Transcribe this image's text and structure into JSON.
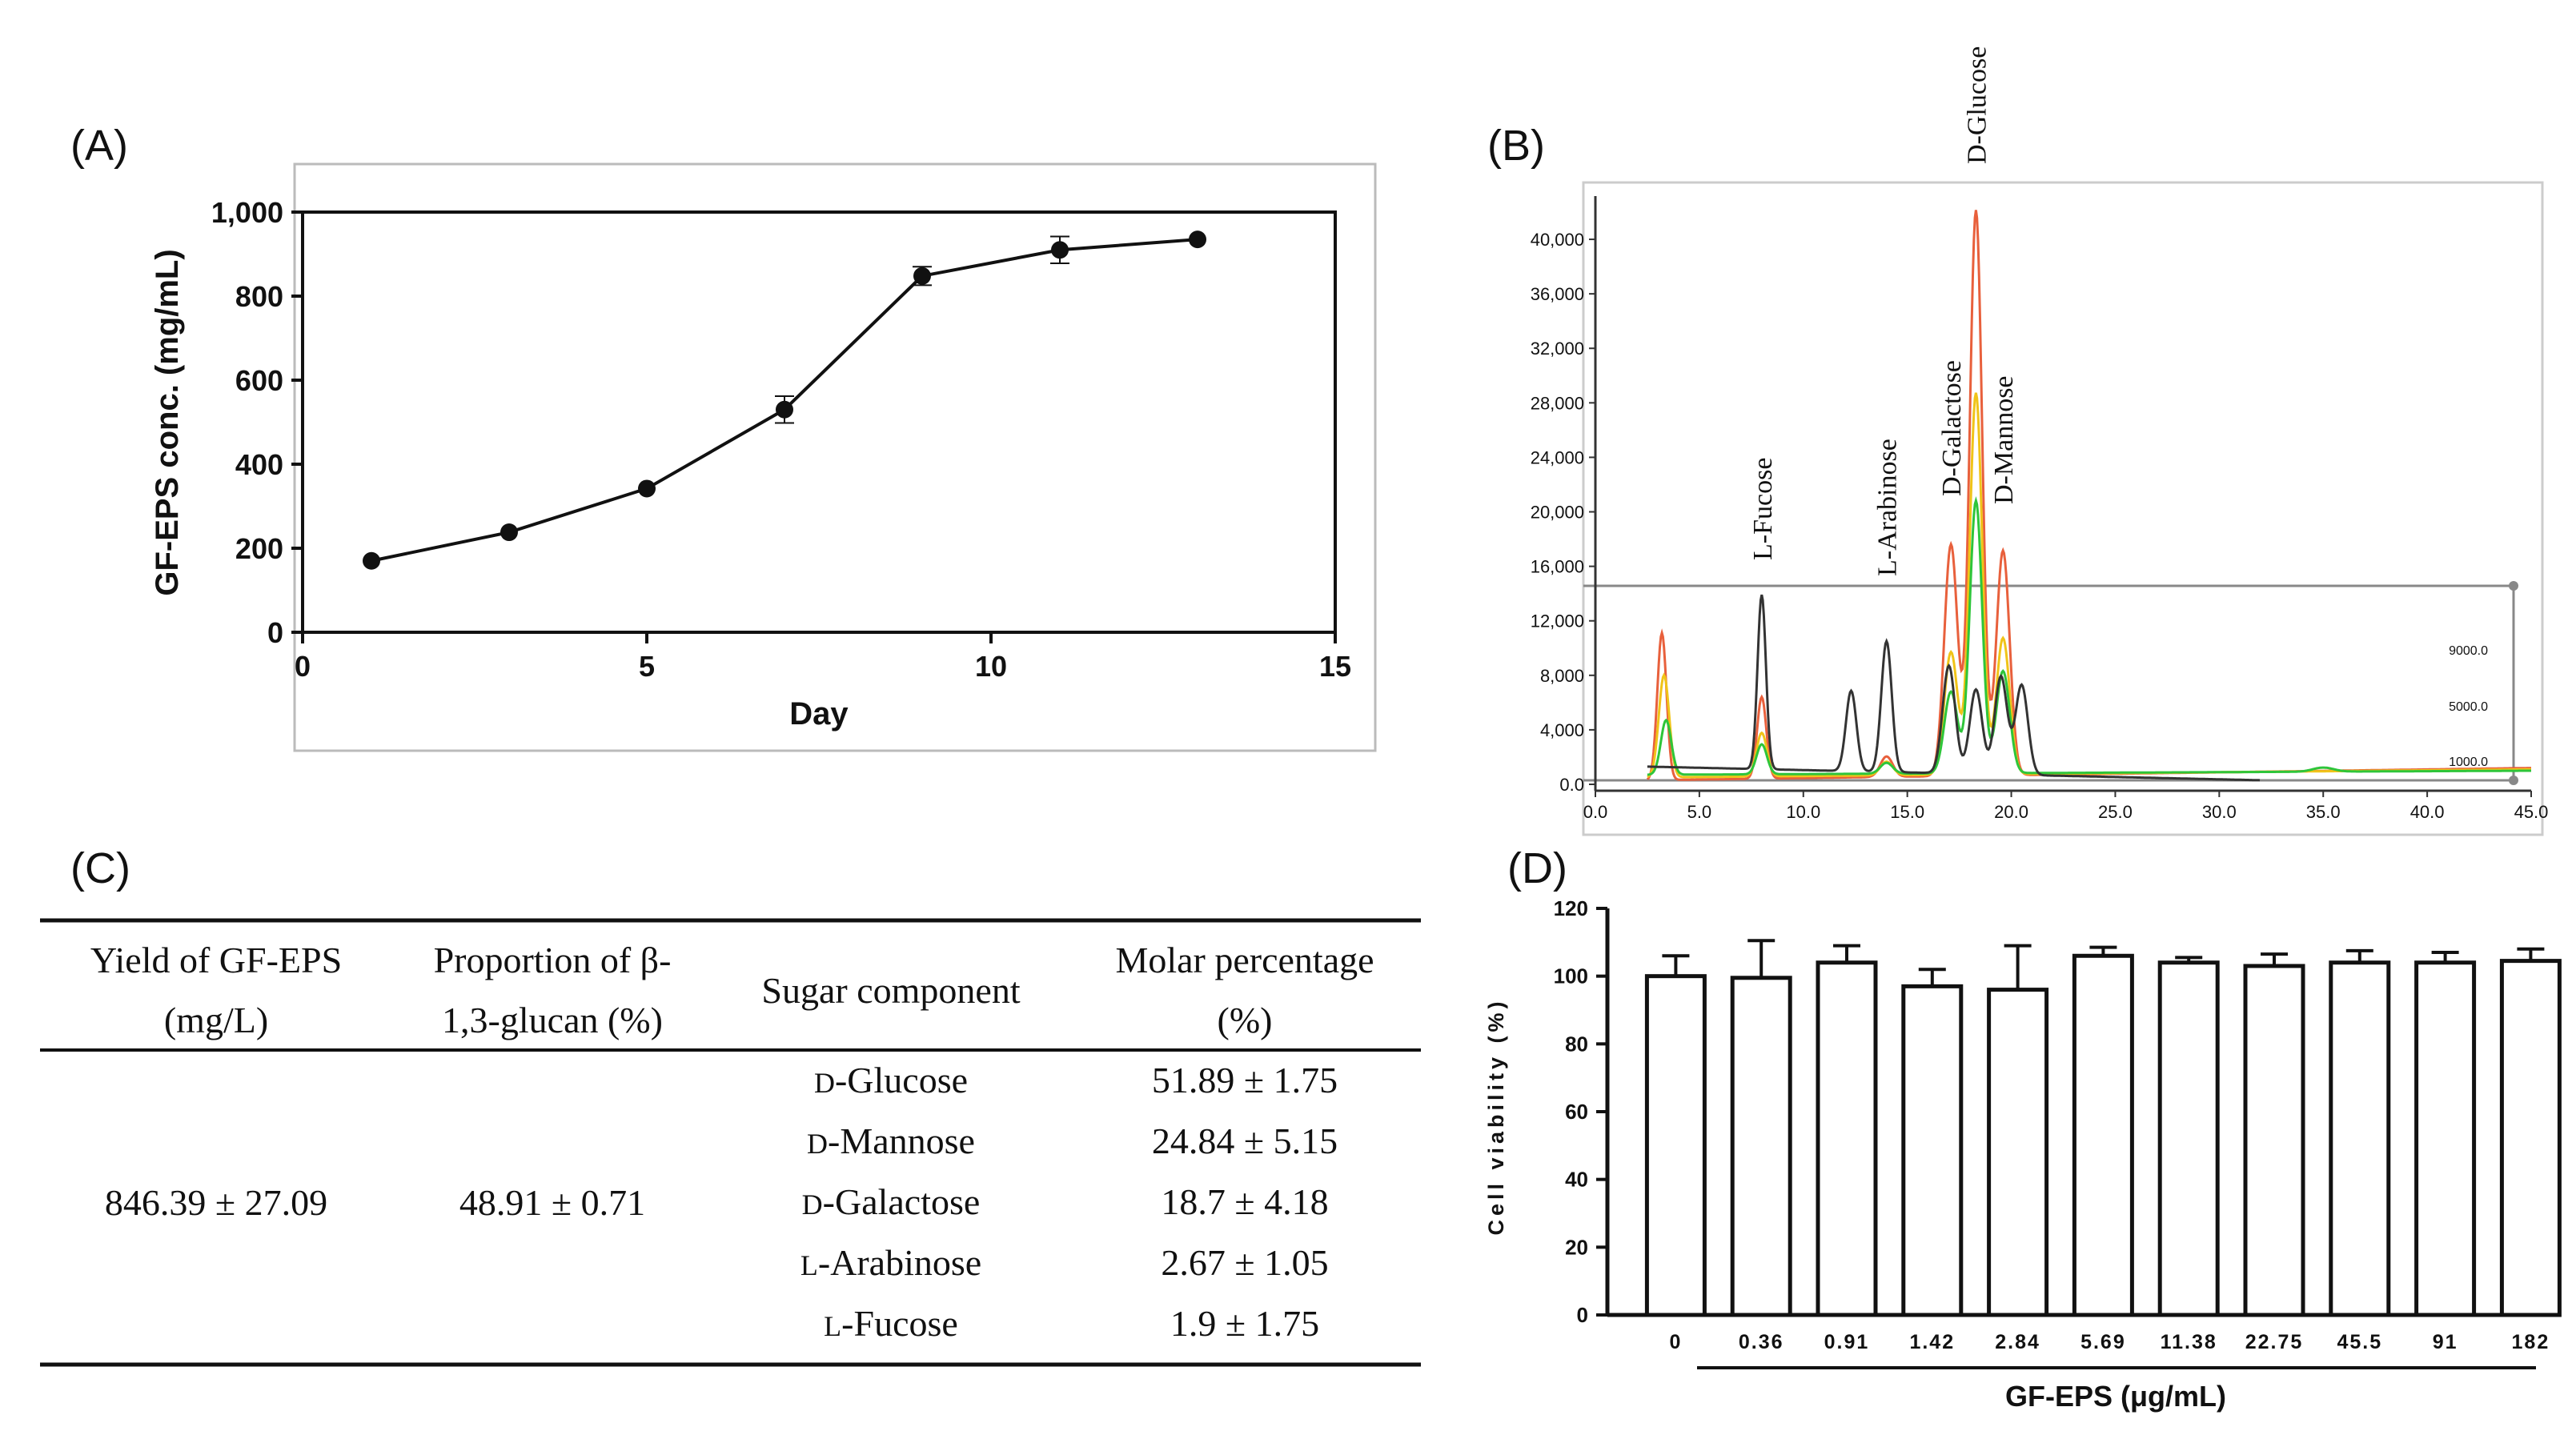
{
  "panels": {
    "a": "(A)",
    "b": "(B)",
    "c": "(C)",
    "d": "(D)"
  },
  "chart_data": [
    {
      "type": "line",
      "xlabel": "Day",
      "ylabel": "GF-EPS conc. (mg/mL)",
      "xlim": [
        0,
        15
      ],
      "ylim": [
        0,
        1000
      ],
      "xticks": [
        "0",
        "5",
        "10",
        "15"
      ],
      "yticks": [
        "0",
        "200",
        "400",
        "600",
        "800",
        "1,000"
      ],
      "x": [
        1,
        3,
        5,
        7,
        9,
        11,
        13
      ],
      "y": [
        170,
        238,
        342,
        530,
        848,
        910,
        935
      ],
      "err": [
        0,
        0,
        0,
        32,
        22,
        32,
        0
      ]
    },
    {
      "type": "line",
      "xlim": [
        0,
        45
      ],
      "ylim": [
        0,
        42000
      ],
      "xticks": [
        "0.0",
        "5.0",
        "10.0",
        "15.0",
        "20.0",
        "25.0",
        "30.0",
        "35.0",
        "40.0",
        "45.0"
      ],
      "yticks": [
        "0.0",
        "4,000",
        "8,000",
        "12,000",
        "16,000",
        "20,000",
        "24,000",
        "28,000",
        "32,000",
        "36,000",
        "40,000"
      ],
      "right_labels": [
        "9000.0",
        "5000.0",
        "1000.0"
      ],
      "peak_labels": [
        "L-Fucose",
        "L-Arabinose",
        "D-Galactose",
        "D-Glucose",
        "D-Mannose"
      ],
      "peak_x": [
        8.0,
        14.0,
        17.1,
        18.3,
        19.6
      ],
      "series": [
        {
          "name": "red",
          "color": "#e8603c",
          "peaks": [
            [
              3.2,
              10800,
              0.22
            ],
            [
              8.0,
              6000,
              0.22
            ],
            [
              14.0,
              1500,
              0.3
            ],
            [
              17.1,
              17000,
              0.32
            ],
            [
              18.3,
              41500,
              0.3
            ],
            [
              19.6,
              16500,
              0.32
            ]
          ],
          "base_start": 300,
          "base_end": 1200
        },
        {
          "name": "yellow",
          "color": "#f0c419",
          "peaks": [
            [
              3.3,
              7500,
              0.25
            ],
            [
              8.0,
              3200,
              0.25
            ],
            [
              14.0,
              1000,
              0.3
            ],
            [
              17.1,
              9000,
              0.32
            ],
            [
              18.3,
              28000,
              0.3
            ],
            [
              19.6,
              10000,
              0.32
            ]
          ],
          "base_start": 500,
          "base_end": 1100
        },
        {
          "name": "green",
          "color": "#2ec53a",
          "peaks": [
            [
              3.4,
              4000,
              0.25
            ],
            [
              8.0,
              2200,
              0.25
            ],
            [
              14.0,
              800,
              0.3
            ],
            [
              17.1,
              6000,
              0.32
            ],
            [
              18.3,
              20000,
              0.3
            ],
            [
              19.6,
              7500,
              0.32
            ],
            [
              35.0,
              300,
              0.5
            ]
          ],
          "base_start": 700,
          "base_end": 1000
        },
        {
          "name": "black",
          "color": "#333333",
          "peaks": [
            [
              8.0,
              12800,
              0.2
            ],
            [
              12.3,
              5900,
              0.25
            ],
            [
              14.0,
              9600,
              0.25
            ],
            [
              17.0,
              7900,
              0.3
            ],
            [
              18.3,
              6200,
              0.3
            ],
            [
              19.5,
              7200,
              0.3
            ],
            [
              20.5,
              6600,
              0.3
            ]
          ],
          "base_start": 1300,
          "base_end": 300
        }
      ]
    },
    {
      "type": "bar",
      "xlabel": "GF-EPS (μg/mL)",
      "ylabel": "Cell viability (%)",
      "ylim": [
        0,
        120
      ],
      "yticks": [
        "0",
        "20",
        "40",
        "60",
        "80",
        "100",
        "120"
      ],
      "categories": [
        "0",
        "0.36",
        "0.91",
        "1.42",
        "2.84",
        "5.69",
        "11.38",
        "22.75",
        "45.5",
        "91",
        "182"
      ],
      "values": [
        100,
        99.5,
        104,
        97,
        96,
        106,
        104,
        103,
        104,
        104,
        104.5
      ],
      "err": [
        6,
        11,
        5,
        5,
        13,
        2.5,
        1.5,
        3.5,
        3.5,
        3,
        3.5
      ]
    }
  ],
  "table": {
    "headers": {
      "yield_1": "Yield of GF-EPS",
      "yield_2": "(mg/L)",
      "prop_1": "Proportion of β-",
      "prop_2": "1,3-glucan (%)",
      "sugar": "Sugar component",
      "molar_1": "Molar percentage",
      "molar_2": "(%)"
    },
    "yield_value": "846.39 ± 27.09",
    "proportion_value": "48.91 ± 0.71",
    "rows": [
      {
        "prefix": "D",
        "name": "-Glucose",
        "molar": "51.89 ± 1.75"
      },
      {
        "prefix": "D",
        "name": "-Mannose",
        "molar": "24.84 ± 5.15"
      },
      {
        "prefix": "D",
        "name": "-Galactose",
        "molar": "18.7 ± 4.18"
      },
      {
        "prefix": "L",
        "name": "-Arabinose",
        "molar": "2.67 ± 1.05"
      },
      {
        "prefix": "L",
        "name": "-Fucose",
        "molar": "1.9 ± 1.75"
      }
    ]
  }
}
